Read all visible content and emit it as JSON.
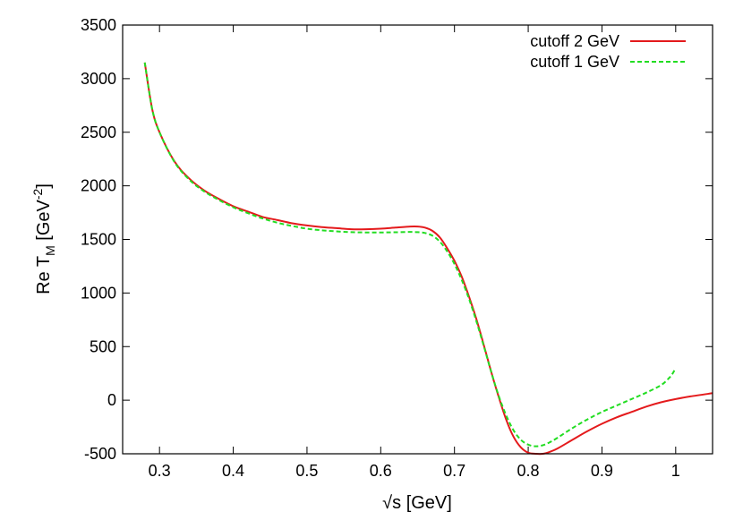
{
  "chart_data": {
    "type": "line",
    "xlabel": "√s [GeV]",
    "ylabel": {
      "base": "Re T",
      "subscript": "M",
      "unit_open": " [GeV",
      "superscript": "-2",
      "unit_close": "]"
    },
    "xlim": [
      0.25,
      1.05
    ],
    "ylim": [
      -500,
      3500
    ],
    "xticks": [
      0.3,
      0.4,
      0.5,
      0.6,
      0.7,
      0.8,
      0.9,
      1.0
    ],
    "xtick_labels": [
      "0.3",
      "0.4",
      "0.5",
      "0.6",
      "0.7",
      "0.8",
      "0.9",
      "1"
    ],
    "yticks": [
      -500,
      0,
      500,
      1000,
      1500,
      2000,
      2500,
      3000,
      3500
    ],
    "ytick_labels": [
      "-500",
      "0",
      "500",
      "1000",
      "1500",
      "2000",
      "2500",
      "3000",
      "3500"
    ],
    "grid": false,
    "legend_position": "top-right",
    "series": [
      {
        "name": "cutoff 2 GeV",
        "color": "#e41a1c",
        "dash": "solid",
        "x": [
          0.28,
          0.29,
          0.3,
          0.32,
          0.34,
          0.36,
          0.38,
          0.4,
          0.42,
          0.44,
          0.46,
          0.48,
          0.5,
          0.52,
          0.54,
          0.56,
          0.58,
          0.6,
          0.62,
          0.64,
          0.65,
          0.66,
          0.67,
          0.68,
          0.69,
          0.7,
          0.71,
          0.72,
          0.73,
          0.74,
          0.75,
          0.76,
          0.77,
          0.78,
          0.79,
          0.8,
          0.81,
          0.82,
          0.83,
          0.84,
          0.86,
          0.88,
          0.9,
          0.92,
          0.94,
          0.96,
          0.98,
          1.0,
          1.02,
          1.05
        ],
        "y": [
          3150,
          2720,
          2500,
          2230,
          2070,
          1960,
          1880,
          1810,
          1760,
          1710,
          1680,
          1650,
          1630,
          1615,
          1605,
          1595,
          1595,
          1600,
          1610,
          1620,
          1620,
          1610,
          1580,
          1520,
          1420,
          1300,
          1150,
          960,
          750,
          510,
          260,
          30,
          -180,
          -340,
          -440,
          -490,
          -505,
          -500,
          -480,
          -450,
          -370,
          -290,
          -220,
          -160,
          -110,
          -60,
          -20,
          10,
          35,
          65
        ]
      },
      {
        "name": "cutoff 1 GeV",
        "color": "#22dd22",
        "dash": "dashed",
        "x": [
          0.28,
          0.29,
          0.3,
          0.32,
          0.34,
          0.36,
          0.38,
          0.4,
          0.42,
          0.44,
          0.46,
          0.48,
          0.5,
          0.52,
          0.54,
          0.56,
          0.58,
          0.6,
          0.62,
          0.64,
          0.65,
          0.66,
          0.67,
          0.68,
          0.69,
          0.7,
          0.71,
          0.72,
          0.73,
          0.74,
          0.75,
          0.76,
          0.77,
          0.78,
          0.79,
          0.8,
          0.81,
          0.82,
          0.83,
          0.84,
          0.86,
          0.88,
          0.9,
          0.92,
          0.94,
          0.96,
          0.98,
          0.99,
          0.995,
          1.0
        ],
        "y": [
          3150,
          2720,
          2500,
          2225,
          2060,
          1950,
          1870,
          1800,
          1745,
          1695,
          1655,
          1625,
          1600,
          1585,
          1575,
          1568,
          1565,
          1565,
          1567,
          1570,
          1568,
          1560,
          1535,
          1480,
          1390,
          1270,
          1120,
          940,
          730,
          500,
          260,
          40,
          -140,
          -280,
          -370,
          -415,
          -430,
          -420,
          -390,
          -350,
          -260,
          -180,
          -110,
          -50,
          10,
          70,
          140,
          200,
          240,
          300
        ]
      }
    ]
  }
}
